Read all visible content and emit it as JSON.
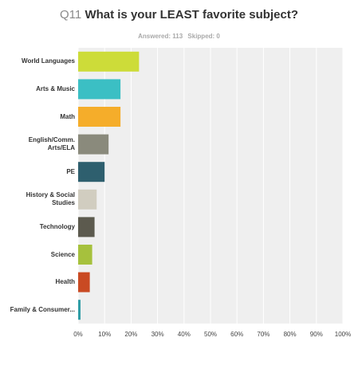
{
  "header": {
    "qnum": "Q11",
    "question": "What is your LEAST favorite subject?",
    "answered": "Answered: 113",
    "skipped": "Skipped: 0"
  },
  "chart_data": {
    "type": "bar",
    "orientation": "horizontal",
    "categories": [
      "World Languages",
      "Arts & Music",
      "Math",
      "English/Comm. Arts/ELA",
      "PE",
      "History & Social Studies",
      "Technology",
      "Science",
      "Health",
      "Family & Consumer..."
    ],
    "values": [
      23,
      16,
      16,
      11.5,
      10,
      7,
      6.2,
      5.3,
      4.4,
      0.9
    ],
    "colors": [
      "#cddc39",
      "#3bbfc4",
      "#f5ad2a",
      "#8a8a7c",
      "#2e5f6e",
      "#d1cdc0",
      "#5c5a4e",
      "#a6c13d",
      "#c94a23",
      "#2f9da6"
    ],
    "xticks": [
      "0%",
      "10%",
      "20%",
      "30%",
      "40%",
      "50%",
      "60%",
      "70%",
      "80%",
      "90%",
      "100%"
    ],
    "xlim": [
      0,
      100
    ],
    "grid": true,
    "title": "What is your LEAST favorite subject?"
  }
}
